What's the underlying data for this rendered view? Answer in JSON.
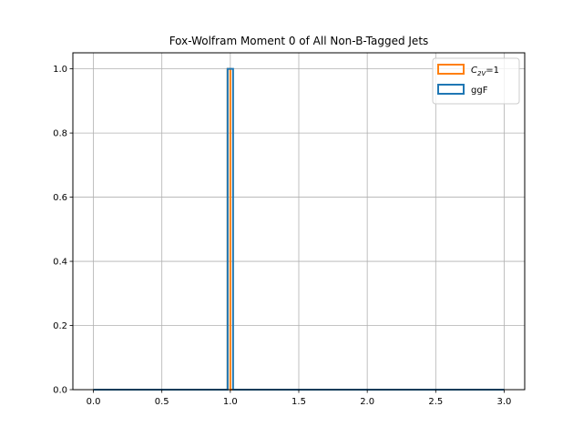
{
  "chart_data": {
    "type": "histogram",
    "title": "Fox-Wolfram Moment 0 of All Non-B-Tagged Jets",
    "xlabel": "",
    "ylabel": "",
    "xlim": [
      -0.15,
      3.15
    ],
    "ylim": [
      0,
      1.05
    ],
    "grid": true,
    "legend_placement": "top-right",
    "x_ticks": [
      0.0,
      0.5,
      1.0,
      1.5,
      2.0,
      2.5,
      3.0
    ],
    "x_tick_labels": [
      "0.0",
      "0.5",
      "1.0",
      "1.5",
      "2.0",
      "2.5",
      "3.0"
    ],
    "y_ticks": [
      0.0,
      0.2,
      0.4,
      0.6,
      0.8,
      1.0
    ],
    "y_tick_labels": [
      "0.0",
      "0.2",
      "0.4",
      "0.6",
      "0.8",
      "1.0"
    ],
    "bins": {
      "min": 0.0,
      "max": 3.0,
      "count": 150
    },
    "series": [
      {
        "name": "C2V=1",
        "legend_main": "C",
        "legend_sub": "2V",
        "legend_rest": "=1",
        "color": "#ff7f0e",
        "style": "step",
        "peak_bin_range": [
          0.98,
          1.0
        ],
        "peak_value": 1.0
      },
      {
        "name": "ggF",
        "legend_main": "ggF",
        "legend_sub": "",
        "legend_rest": "",
        "color": "#1f77b4",
        "style": "step",
        "peak_bin_range": [
          0.98,
          1.02
        ],
        "peak_value": 1.0
      }
    ]
  }
}
